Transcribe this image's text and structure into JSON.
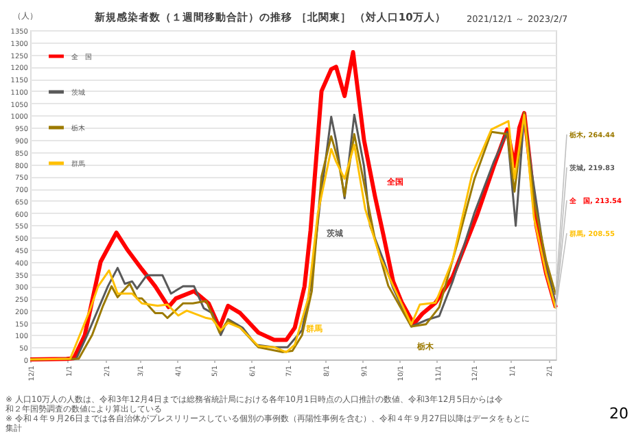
{
  "chart_data": {
    "type": "line",
    "title": "新規感染者数（１週間移動合計）の推移 ［北関東］ （対人口10万人）",
    "subtitle": "2021/12/1 ～ 2023/2/7",
    "ylabel": "（人）",
    "xlim": [
      "2021-12-01",
      "2023-02-07"
    ],
    "xticks": [
      {
        "value": "2021-12-01",
        "label": "12/1"
      },
      {
        "value": "2022-01-01",
        "label": "1/1"
      },
      {
        "value": "2022-02-01",
        "label": "2/1"
      },
      {
        "value": "2022-03-01",
        "label": "3/1"
      },
      {
        "value": "2022-04-01",
        "label": "4/1"
      },
      {
        "value": "2022-05-01",
        "label": "5/1"
      },
      {
        "value": "2022-06-01",
        "label": "6/1"
      },
      {
        "value": "2022-07-01",
        "label": "7/1"
      },
      {
        "value": "2022-08-01",
        "label": "8/1"
      },
      {
        "value": "2022-09-01",
        "label": "9/1"
      },
      {
        "value": "2022-10-01",
        "label": "10/1"
      },
      {
        "value": "2022-11-01",
        "label": "11/1"
      },
      {
        "value": "2022-12-01",
        "label": "12/1"
      },
      {
        "value": "2023-01-01",
        "label": "1/1"
      },
      {
        "value": "2023-02-01",
        "label": "2/1"
      }
    ],
    "ylim": [
      0,
      1350
    ],
    "yticks": [
      0,
      50,
      100,
      150,
      200,
      250,
      300,
      350,
      400,
      450,
      500,
      550,
      600,
      650,
      700,
      750,
      800,
      850,
      900,
      950,
      1000,
      1050,
      1100,
      1150,
      1200,
      1250,
      1300,
      1350
    ],
    "grid": "y",
    "legend": "top left",
    "marker": "none",
    "line_style": "solid",
    "series": [
      {
        "name": "全　国",
        "color": "#ff0000",
        "x": [
          "2021-12-01",
          "2021-12-31",
          "2022-01-06",
          "2022-01-15",
          "2022-01-28",
          "2022-02-10",
          "2022-02-19",
          "2022-03-03",
          "2022-03-14",
          "2022-03-25",
          "2022-03-31",
          "2022-04-15",
          "2022-04-27",
          "2022-05-06",
          "2022-05-13",
          "2022-05-23",
          "2022-06-07",
          "2022-06-20",
          "2022-06-30",
          "2022-07-07",
          "2022-07-15",
          "2022-07-20",
          "2022-07-29",
          "2022-08-06",
          "2022-08-10",
          "2022-08-17",
          "2022-08-24",
          "2022-09-02",
          "2022-09-11",
          "2022-09-18",
          "2022-09-26",
          "2022-10-03",
          "2022-10-13",
          "2022-10-20",
          "2022-10-31",
          "2022-11-14",
          "2022-12-04",
          "2022-12-18",
          "2022-12-29",
          "2023-01-04",
          "2023-01-08",
          "2023-01-12",
          "2023-01-17",
          "2023-01-22",
          "2023-01-30",
          "2023-02-07"
        ],
        "values": [
          0,
          2,
          5,
          100,
          400,
          520,
          450,
          370,
          300,
          215,
          250,
          280,
          230,
          130,
          220,
          190,
          110,
          80,
          80,
          130,
          300,
          530,
          1100,
          1190,
          1200,
          1080,
          1260,
          900,
          670,
          510,
          320,
          235,
          145,
          187,
          233,
          338,
          590,
          793,
          943,
          793,
          950,
          1010,
          793,
          548,
          354,
          213.54
        ]
      },
      {
        "name": "茨城",
        "color": "#595959",
        "x": [
          "2021-12-01",
          "2022-01-08",
          "2022-01-17",
          "2022-02-03",
          "2022-02-11",
          "2022-02-17",
          "2022-02-23",
          "2022-02-27",
          "2022-03-07",
          "2022-03-20",
          "2022-03-27",
          "2022-04-06",
          "2022-04-15",
          "2022-04-23",
          "2022-04-30",
          "2022-05-07",
          "2022-05-13",
          "2022-05-25",
          "2022-06-05",
          "2022-06-20",
          "2022-07-01",
          "2022-07-13",
          "2022-07-20",
          "2022-07-28",
          "2022-08-06",
          "2022-08-10",
          "2022-08-17",
          "2022-08-25",
          "2022-09-02",
          "2022-09-07",
          "2022-09-18",
          "2022-09-26",
          "2022-10-11",
          "2022-10-23",
          "2022-11-03",
          "2022-11-14",
          "2022-12-02",
          "2022-12-18",
          "2022-12-29",
          "2023-01-05",
          "2023-01-12",
          "2023-01-18",
          "2023-01-28",
          "2023-02-07"
        ],
        "values": [
          0,
          3,
          100,
          300,
          375,
          310,
          320,
          290,
          345,
          345,
          270,
          300,
          300,
          210,
          190,
          100,
          165,
          130,
          60,
          50,
          50,
          120,
          300,
          650,
          995,
          897,
          661,
          1003,
          793,
          548,
          407,
          293,
          135,
          161,
          178,
          319,
          601,
          811,
          933,
          548,
          1003,
          776,
          442,
          219.83
        ]
      },
      {
        "name": "栃木",
        "color": "#9c7a00",
        "x": [
          "2021-12-01",
          "2022-01-10",
          "2022-01-21",
          "2022-01-30",
          "2022-02-06",
          "2022-02-11",
          "2022-02-21",
          "2022-02-27",
          "2022-03-03",
          "2022-03-14",
          "2022-03-20",
          "2022-03-24",
          "2022-04-06",
          "2022-04-14",
          "2022-04-25",
          "2022-05-06",
          "2022-05-13",
          "2022-05-23",
          "2022-06-07",
          "2022-06-27",
          "2022-07-05",
          "2022-07-13",
          "2022-07-21",
          "2022-07-29",
          "2022-08-06",
          "2022-08-12",
          "2022-08-17",
          "2022-08-25",
          "2022-09-02",
          "2022-09-11",
          "2022-09-22",
          "2022-10-11",
          "2022-10-23",
          "2022-11-03",
          "2022-11-18",
          "2022-12-02",
          "2022-12-16",
          "2022-12-29",
          "2023-01-04",
          "2023-01-12",
          "2023-01-20",
          "2023-01-30",
          "2023-02-07"
        ],
        "values": [
          0,
          3,
          100,
          220,
          300,
          255,
          310,
          250,
          250,
          190,
          190,
          170,
          230,
          230,
          240,
          110,
          160,
          130,
          50,
          30,
          35,
          100,
          280,
          750,
          915,
          811,
          670,
          924,
          723,
          494,
          302,
          135,
          144,
          214,
          477,
          740,
          933,
          924,
          688,
          1012,
          652,
          407,
          264.44
        ]
      },
      {
        "name": "群馬",
        "color": "#ffc000",
        "x": [
          "2021-12-01",
          "2022-01-03",
          "2022-01-19",
          "2022-01-26",
          "2022-02-04",
          "2022-02-11",
          "2022-02-23",
          "2022-03-03",
          "2022-03-16",
          "2022-03-24",
          "2022-04-02",
          "2022-04-09",
          "2022-04-25",
          "2022-04-30",
          "2022-05-07",
          "2022-05-13",
          "2022-05-23",
          "2022-06-07",
          "2022-06-20",
          "2022-06-30",
          "2022-07-07",
          "2022-07-18",
          "2022-07-26",
          "2022-08-06",
          "2022-08-10",
          "2022-08-17",
          "2022-08-25",
          "2022-09-03",
          "2022-09-15",
          "2022-09-26",
          "2022-10-11",
          "2022-10-18",
          "2022-10-31",
          "2022-11-14",
          "2022-11-30",
          "2022-12-16",
          "2022-12-30",
          "2023-01-04",
          "2023-01-12",
          "2023-01-20",
          "2023-01-30",
          "2023-02-07"
        ],
        "values": [
          0,
          3,
          200,
          300,
          365,
          270,
          270,
          230,
          220,
          225,
          180,
          200,
          170,
          165,
          120,
          150,
          130,
          55,
          50,
          30,
          60,
          250,
          600,
          863,
          811,
          741,
          880,
          617,
          424,
          302,
          144,
          225,
          233,
          407,
          758,
          943,
          977,
          741,
          1003,
          582,
          354,
          208.55
        ]
      }
    ],
    "annotations": [
      "全国",
      "茨城",
      "栃木",
      "群馬",
      {
        "text": "栃木, 264.44",
        "x": "2023-02-07",
        "y": 264.44
      },
      {
        "text": "茨城, 219.83",
        "x": "2023-02-07",
        "y": 219.83
      },
      {
        "text": "全　国, 213.54",
        "x": "2023-02-07",
        "y": 213.54
      },
      {
        "text": "群馬, 208.55",
        "x": "2023-02-07",
        "y": 208.55
      },
      "※ 人口10万人の人数は、令和3年12月4日までは総務省統計局における各年10月1日時点の人口推計の数値、令和3年12月5日からは令和２年国勢調査の数値により算出している",
      "※ 令和４年９月26日までは各自治体がプレスリリースしている個別の事例数（再陽性事例を含む）、令和４年９月27日以降はデータをもとに集計",
      "20"
    ]
  }
}
